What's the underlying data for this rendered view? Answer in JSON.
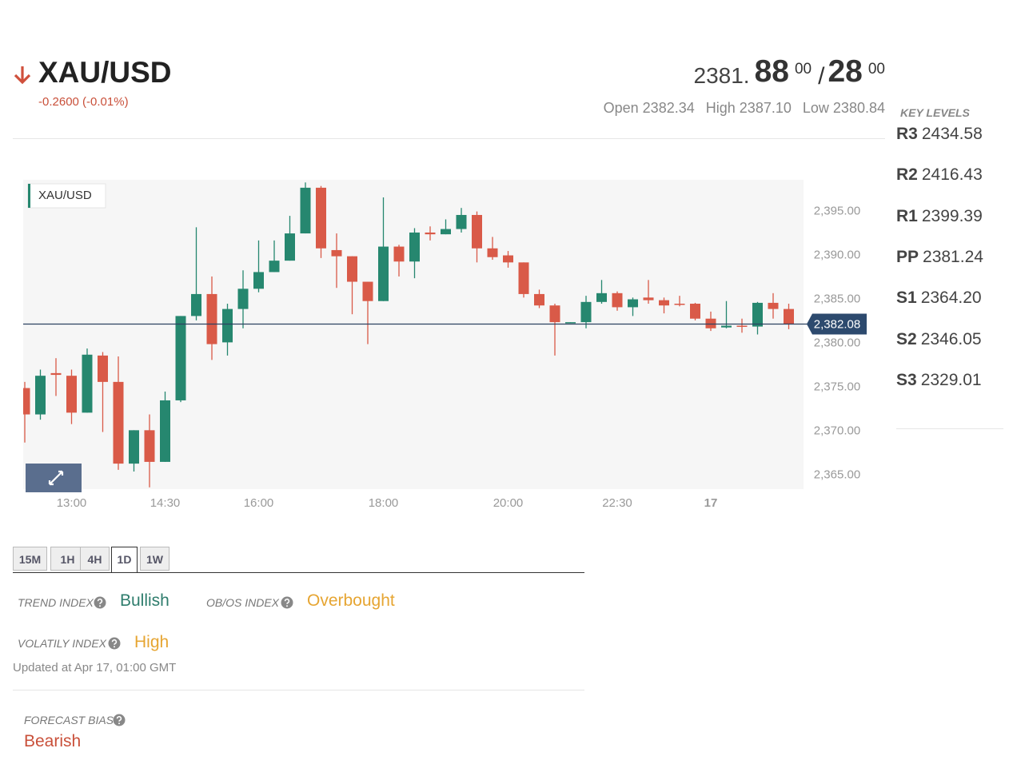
{
  "header": {
    "symbol": "XAU/USD",
    "change": "-0.2600 (-0.01%)",
    "bid_main": "2381.",
    "bid_decimals": "88",
    "bid_sup": "00",
    "separator": "/",
    "ask_decimals": "28",
    "ask_sup": "00",
    "stats": [
      {
        "label": "Open",
        "value": "2382.34"
      },
      {
        "label": "High",
        "value": "2387.10"
      },
      {
        "label": "Low",
        "value": "2380.84"
      }
    ]
  },
  "key_levels": {
    "title": "KEY LEVELS",
    "levels": [
      {
        "name": "R3",
        "value": "2434.58"
      },
      {
        "name": "R2",
        "value": "2416.43"
      },
      {
        "name": "R1",
        "value": "2399.39"
      },
      {
        "name": "PP",
        "value": "2381.24"
      },
      {
        "name": "S1",
        "value": "2364.20"
      },
      {
        "name": "S2",
        "value": "2346.05"
      },
      {
        "name": "S3",
        "value": "2329.01"
      }
    ]
  },
  "chart_data": {
    "type": "candlestick",
    "legend": "XAU/USD",
    "categories": [
      null,
      null,
      null,
      "13:00",
      null,
      null,
      null,
      null,
      null,
      "14:30",
      null,
      null,
      null,
      null,
      null,
      "16:00",
      null,
      null,
      null,
      null,
      null,
      null,
      null,
      "18:00",
      null,
      null,
      null,
      null,
      null,
      null,
      null,
      "20:00",
      null,
      null,
      null,
      null,
      null,
      null,
      "22:30",
      null,
      null,
      null,
      null,
      null,
      "17",
      null,
      null,
      null,
      null,
      null
    ],
    "open": [
      2374.8,
      2371.8,
      2376.5,
      2376.2,
      2372.0,
      2378.5,
      2375.5,
      2366.2,
      2370.0,
      2366.4,
      2373.4,
      2383.0,
      2385.5,
      2380.0,
      2383.8,
      2386.1,
      2388.0,
      2389.3,
      2392.4,
      2397.6,
      2390.5,
      2389.8,
      2386.9,
      2384.7,
      2390.9,
      2389.2,
      2392.5,
      2392.3,
      2392.9,
      2394.5,
      2390.7,
      2389.9,
      2389.1,
      2385.5,
      2384.2,
      2382.2,
      2382.3,
      2384.6,
      2385.6,
      2384.0,
      2385.1,
      2384.8,
      2384.4,
      2384.4,
      2382.7,
      2381.7,
      2381.9,
      2381.8,
      2384.5,
      2383.8
    ],
    "high": [
      2375.5,
      2376.9,
      2378.2,
      2376.9,
      2379.3,
      2378.9,
      2378.4,
      2370.0,
      2371.8,
      2374.4,
      2383.0,
      2393.1,
      2387.5,
      2384.4,
      2388.2,
      2391.6,
      2391.6,
      2394.4,
      2398.2,
      2397.8,
      2392.4,
      2389.8,
      2386.9,
      2396.5,
      2391.1,
      2393.0,
      2393.2,
      2394.0,
      2395.3,
      2394.9,
      2392.0,
      2390.4,
      2389.1,
      2386.0,
      2384.4,
      2382.3,
      2385.3,
      2387.1,
      2385.8,
      2385.1,
      2387.1,
      2385.1,
      2385.3,
      2384.5,
      2383.5,
      2384.7,
      2382.7,
      2384.6,
      2385.6,
      2384.4
    ],
    "low": [
      2368.6,
      2371.2,
      2373.9,
      2370.7,
      2372.0,
      2369.8,
      2365.5,
      2365.3,
      2363.5,
      2366.4,
      2373.2,
      2382.5,
      2378.0,
      2378.5,
      2381.6,
      2385.7,
      2388.0,
      2389.3,
      2392.4,
      2389.6,
      2386.2,
      2383.2,
      2379.8,
      2384.7,
      2387.5,
      2387.3,
      2391.6,
      2392.3,
      2392.5,
      2389.1,
      2389.4,
      2388.5,
      2385.1,
      2383.9,
      2378.5,
      2382.2,
      2381.6,
      2384.4,
      2383.6,
      2383.0,
      2384.4,
      2383.3,
      2384.1,
      2382.5,
      2381.3,
      2381.6,
      2381.1,
      2380.9,
      2382.7,
      2381.5
    ],
    "close": [
      2371.8,
      2376.2,
      2376.3,
      2372.0,
      2378.6,
      2375.5,
      2366.2,
      2370.0,
      2366.4,
      2373.4,
      2383.0,
      2385.5,
      2379.8,
      2383.8,
      2386.1,
      2388.0,
      2389.3,
      2392.4,
      2397.6,
      2390.7,
      2389.8,
      2386.9,
      2384.7,
      2390.9,
      2389.2,
      2392.5,
      2392.3,
      2392.9,
      2394.5,
      2390.7,
      2389.7,
      2389.1,
      2385.5,
      2384.2,
      2382.3,
      2382.3,
      2384.6,
      2385.6,
      2384.0,
      2384.9,
      2384.8,
      2384.2,
      2384.3,
      2382.7,
      2381.6,
      2381.9,
      2381.8,
      2384.5,
      2383.8,
      2382.1
    ],
    "up_color": "#26876f",
    "down_color": "#d95a48",
    "ylim": [
      2363.3,
      2398.5
    ],
    "yticks": [
      {
        "value": 2365,
        "label": "2,365.00"
      },
      {
        "value": 2370,
        "label": "2,370.00"
      },
      {
        "value": 2375,
        "label": "2,375.00"
      },
      {
        "value": 2380,
        "label": "2,380.00"
      },
      {
        "value": 2385,
        "label": "2,385.00"
      },
      {
        "value": 2390,
        "label": "2,390.00"
      },
      {
        "value": 2395,
        "label": "2,395.00"
      }
    ],
    "grid": false,
    "last_price": {
      "value": 2382.08,
      "label": "2,382.08"
    }
  },
  "timeframes": {
    "options": [
      "15M",
      "1H",
      "4H",
      "1D",
      "1W"
    ],
    "active": "1D"
  },
  "indices": {
    "trend": {
      "label": "TREND INDEX",
      "value": "Bullish"
    },
    "obos": {
      "label": "OB/OS INDEX",
      "value": "Overbought"
    },
    "volatility": {
      "label": "VOLATILY INDEX",
      "value": "High"
    },
    "updated": "Updated at Apr 17, 01:00 GMT"
  },
  "forecast": {
    "label": "FORECAST BIAS",
    "value": "Bearish"
  }
}
